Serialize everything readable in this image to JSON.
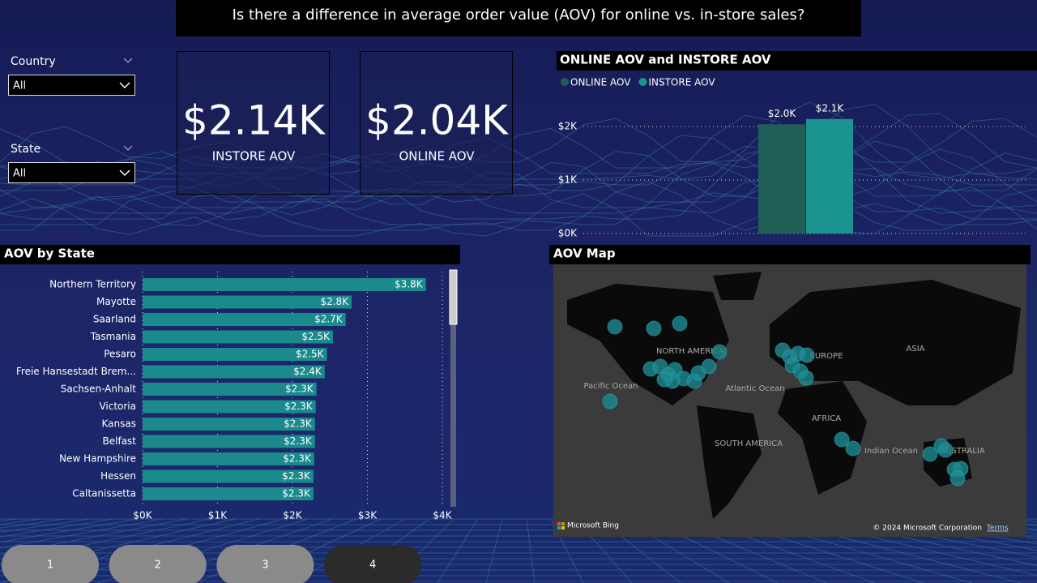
{
  "header": {
    "title": "Is there a difference in average order value (AOV) for online vs. in-store sales?"
  },
  "filters": [
    {
      "label": "Country",
      "value": "All"
    },
    {
      "label": "State",
      "value": "All"
    }
  ],
  "cards": [
    {
      "value": "$2.14K",
      "label": "INSTORE AOV"
    },
    {
      "value": "$2.04K",
      "label": "ONLINE AOV"
    }
  ],
  "chart_data": [
    {
      "type": "bar",
      "title": "ONLINE AOV and INSTORE AOV",
      "categories": [
        null
      ],
      "series": [
        {
          "name": "ONLINE AOV",
          "color": "#1f5f58",
          "values": [
            2040
          ],
          "value_labels": [
            "$2.0K"
          ]
        },
        {
          "name": "INSTORE AOV",
          "color": "#1a9391",
          "values": [
            2140
          ],
          "value_labels": [
            "$2.1K"
          ]
        }
      ],
      "ylim": [
        0,
        2400
      ],
      "yticks": [
        {
          "value": 0,
          "label": "$0K"
        },
        {
          "value": 1000,
          "label": "$1K"
        },
        {
          "value": 2000,
          "label": "$2K"
        }
      ],
      "grid": true,
      "legend": "top-left"
    },
    {
      "type": "barh",
      "title": "AOV by State",
      "categories": [
        "Northern Territory",
        "Mayotte",
        "Saarland",
        "Tasmania",
        "Pesaro",
        "Freie Hansestadt Brem...",
        "Sachsen-Anhalt",
        "Victoria",
        "Kansas",
        "Belfast",
        "New Hampshire",
        "Hessen",
        "Caltanissetta"
      ],
      "values": [
        3780,
        2790,
        2710,
        2540,
        2460,
        2430,
        2320,
        2310,
        2300,
        2300,
        2290,
        2280,
        2280
      ],
      "value_labels": [
        "$3.8K",
        "$2.8K",
        "$2.7K",
        "$2.5K",
        "$2.5K",
        "$2.4K",
        "$2.3K",
        "$2.3K",
        "$2.3K",
        "$2.3K",
        "$2.3K",
        "$2.3K",
        "$2.3K"
      ],
      "color": "#1a8a8c",
      "xlim": [
        0,
        4000
      ],
      "xticks": [
        {
          "value": 0,
          "label": "$0K"
        },
        {
          "value": 1000,
          "label": "$1K"
        },
        {
          "value": 2000,
          "label": "$2K"
        },
        {
          "value": 3000,
          "label": "$3K"
        },
        {
          "value": 4000,
          "label": "$4K"
        }
      ],
      "grid": true
    }
  ],
  "map": {
    "title": "AOV Map",
    "labels": [
      "NORTH AMERICA",
      "EUROPE",
      "ASIA",
      "Pacific Ocean",
      "Atlantic Ocean",
      "AFRICA",
      "SOUTH AMERICA",
      "Indian Ocean",
      "AUSTRALIA"
    ],
    "attribution": "Microsoft Bing",
    "copyright": "© 2024 Microsoft Corporation",
    "terms": "Terms"
  },
  "nav": [
    "1",
    "2",
    "3",
    "4"
  ]
}
